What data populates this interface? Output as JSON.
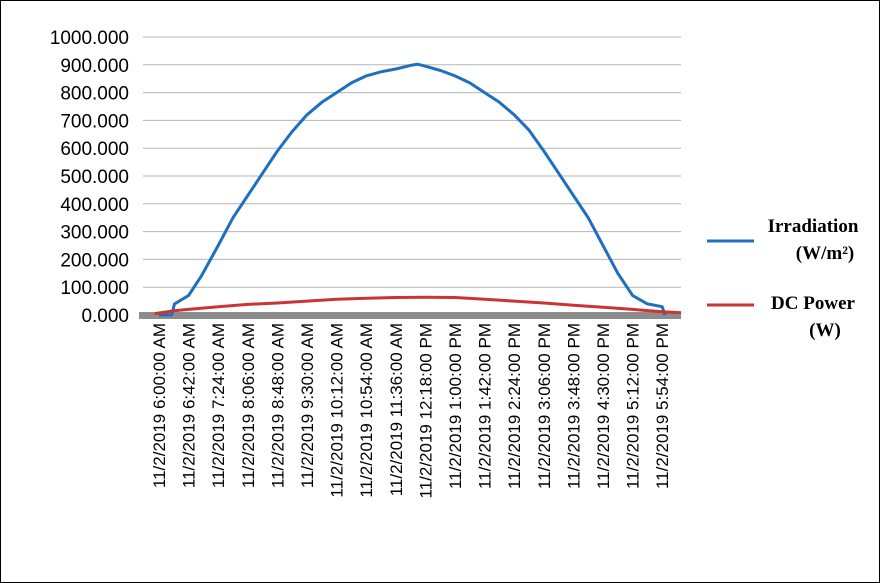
{
  "chart_data": {
    "type": "line",
    "title": "",
    "xlabel": "",
    "ylabel": "",
    "ylim": [
      0,
      1000
    ],
    "y_ticks": [
      "0.000",
      "100.000",
      "200.000",
      "300.000",
      "400.000",
      "500.000",
      "600.000",
      "700.000",
      "800.000",
      "900.000",
      "1000.000"
    ],
    "x_tick_labels": [
      "11/2/2019 6:00:00 AM",
      "11/2/2019 6:42:00 AM",
      "11/2/2019 7:24:00 AM",
      "11/2/2019 8:06:00 AM",
      "11/2/2019 8:48:00 AM",
      "11/2/2019 9:30:00 AM",
      "11/2/2019 10:12:00 AM",
      "11/2/2019 10:54:00 AM",
      "11/2/2019 11:36:00 AM",
      "11/2/2019 12:18:00 PM",
      "11/2/2019 1:00:00 PM",
      "11/2/2019 1:42:00 PM",
      "11/2/2019 2:24:00 PM",
      "11/2/2019 3:06:00 PM",
      "11/2/2019 3:48:00 PM",
      "11/2/2019 4:30:00 PM",
      "11/2/2019 5:12:00 PM",
      "11/2/2019 5:54:00 PM"
    ],
    "x_unit": "minutes",
    "x_start": "11/2/2019 6:00:00 AM",
    "grid": true,
    "legend_position": "right",
    "series": [
      {
        "name_lines": [
          "Irradiation",
          "(W/m²)"
        ],
        "color": "#1f6fbf",
        "points": [
          [
            "11/2/2019 6:00:00 AM",
            0
          ],
          [
            "11/2/2019 6:18:00 AM",
            0
          ],
          [
            "11/2/2019 6:22:00 AM",
            40
          ],
          [
            "11/2/2019 6:42:00 AM",
            70
          ],
          [
            "11/2/2019 7:00:00 AM",
            140
          ],
          [
            "11/2/2019 7:24:00 AM",
            250
          ],
          [
            "11/2/2019 7:45:00 AM",
            350
          ],
          [
            "11/2/2019 8:06:00 AM",
            430
          ],
          [
            "11/2/2019 8:27:00 AM",
            510
          ],
          [
            "11/2/2019 8:48:00 AM",
            590
          ],
          [
            "11/2/2019 9:09:00 AM",
            660
          ],
          [
            "11/2/2019 9:30:00 AM",
            720
          ],
          [
            "11/2/2019 9:51:00 AM",
            765
          ],
          [
            "11/2/2019 10:12:00 AM",
            800
          ],
          [
            "11/2/2019 10:33:00 AM",
            835
          ],
          [
            "11/2/2019 10:54:00 AM",
            860
          ],
          [
            "11/2/2019 11:15:00 AM",
            875
          ],
          [
            "11/2/2019 11:36:00 AM",
            885
          ],
          [
            "11/2/2019 11:57:00 AM",
            898
          ],
          [
            "11/2/2019 12:07:00 PM",
            902
          ],
          [
            "11/2/2019 12:18:00 PM",
            895
          ],
          [
            "11/2/2019 12:39:00 PM",
            880
          ],
          [
            "11/2/2019 1:00:00 PM",
            860
          ],
          [
            "11/2/2019 1:21:00 PM",
            835
          ],
          [
            "11/2/2019 1:42:00 PM",
            800
          ],
          [
            "11/2/2019 2:03:00 PM",
            765
          ],
          [
            "11/2/2019 2:24:00 PM",
            720
          ],
          [
            "11/2/2019 2:45:00 PM",
            665
          ],
          [
            "11/2/2019 3:06:00 PM",
            590
          ],
          [
            "11/2/2019 3:27:00 PM",
            510
          ],
          [
            "11/2/2019 3:48:00 PM",
            430
          ],
          [
            "11/2/2019 4:09:00 PM",
            350
          ],
          [
            "11/2/2019 4:30:00 PM",
            250
          ],
          [
            "11/2/2019 4:51:00 PM",
            150
          ],
          [
            "11/2/2019 5:12:00 PM",
            70
          ],
          [
            "11/2/2019 5:33:00 PM",
            40
          ],
          [
            "11/2/2019 5:54:00 PM",
            30
          ],
          [
            "11/2/2019 5:58:00 PM",
            0
          ]
        ]
      },
      {
        "name_lines": [
          "DC Power",
          "(W)"
        ],
        "color": "#cc3333",
        "points": [
          [
            "11/2/2019 5:54:00 AM",
            5
          ],
          [
            "11/2/2019 6:21:00 AM",
            15
          ],
          [
            "11/2/2019 6:42:00 AM",
            20
          ],
          [
            "11/2/2019 7:24:00 AM",
            30
          ],
          [
            "11/2/2019 8:06:00 AM",
            38
          ],
          [
            "11/2/2019 8:48:00 AM",
            43
          ],
          [
            "11/2/2019 9:30:00 AM",
            50
          ],
          [
            "11/2/2019 10:12:00 AM",
            57
          ],
          [
            "11/2/2019 10:54:00 AM",
            60
          ],
          [
            "11/2/2019 11:36:00 AM",
            63
          ],
          [
            "11/2/2019 12:18:00 PM",
            64
          ],
          [
            "11/2/2019 1:00:00 PM",
            63
          ],
          [
            "11/2/2019 1:42:00 PM",
            57
          ],
          [
            "11/2/2019 2:24:00 PM",
            50
          ],
          [
            "11/2/2019 3:06:00 PM",
            43
          ],
          [
            "11/2/2019 3:48:00 PM",
            35
          ],
          [
            "11/2/2019 4:30:00 PM",
            28
          ],
          [
            "11/2/2019 5:12:00 PM",
            20
          ],
          [
            "11/2/2019 5:54:00 PM",
            12
          ],
          [
            "11/2/2019 6:24:00 PM",
            8
          ]
        ]
      }
    ]
  }
}
